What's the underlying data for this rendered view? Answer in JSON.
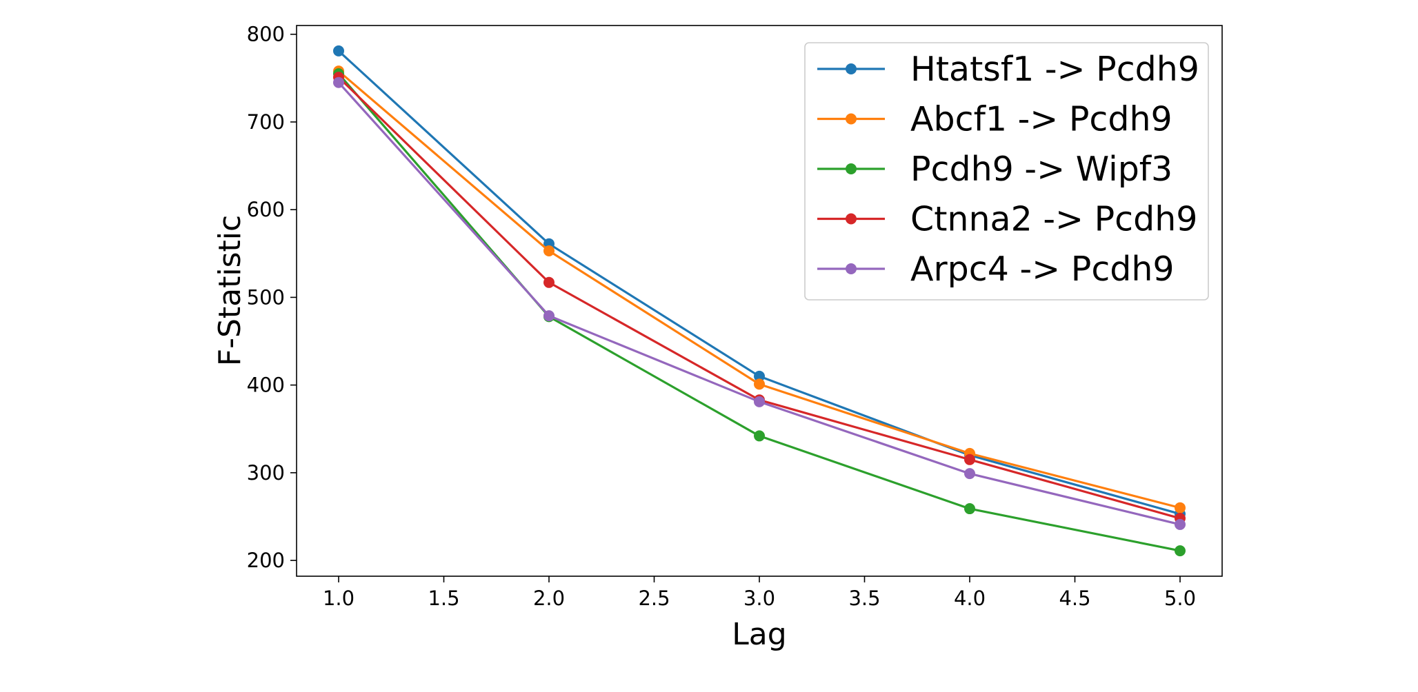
{
  "chart_data": {
    "type": "line",
    "title": "",
    "xlabel": "Lag",
    "ylabel": "F-Statistic",
    "x": [
      1.0,
      2.0,
      3.0,
      4.0,
      5.0
    ],
    "xlim": [
      0.8,
      5.2
    ],
    "ylim": [
      182,
      810
    ],
    "xticks": [
      1.0,
      1.5,
      2.0,
      2.5,
      3.0,
      3.5,
      4.0,
      4.5,
      5.0
    ],
    "xtick_labels": [
      "1.0",
      "1.5",
      "2.0",
      "2.5",
      "3.0",
      "3.5",
      "4.0",
      "4.5",
      "5.0"
    ],
    "yticks": [
      200,
      300,
      400,
      500,
      600,
      700,
      800
    ],
    "ytick_labels": [
      "200",
      "300",
      "400",
      "500",
      "600",
      "700",
      "800"
    ],
    "grid": false,
    "legend_position": "top-right",
    "series": [
      {
        "name": "Htatsf1 -> Pcdh9",
        "color": "#1f77b4",
        "values": [
          781,
          561,
          410,
          320,
          253
        ]
      },
      {
        "name": "Abcf1 -> Pcdh9",
        "color": "#ff7f0e",
        "values": [
          758,
          553,
          401,
          322,
          260
        ]
      },
      {
        "name": "Pcdh9 -> Wipf3",
        "color": "#2ca02c",
        "values": [
          755,
          478,
          342,
          259,
          211
        ]
      },
      {
        "name": "Ctnna2 -> Pcdh9",
        "color": "#d62728",
        "values": [
          751,
          517,
          383,
          315,
          248
        ]
      },
      {
        "name": "Arpc4 -> Pcdh9",
        "color": "#9467bd",
        "values": [
          745,
          479,
          381,
          299,
          241
        ]
      }
    ]
  }
}
